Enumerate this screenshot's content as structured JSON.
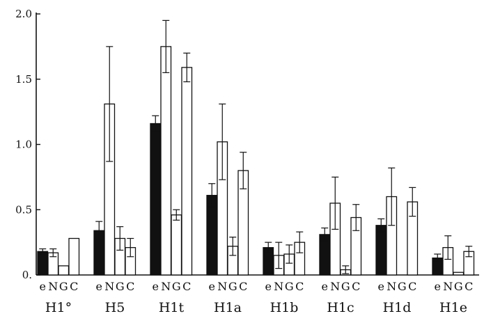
{
  "chart_data": {
    "type": "bar",
    "categories": [
      "H1°",
      "H5",
      "H1t",
      "H1a",
      "H1b",
      "H1c",
      "H1d",
      "H1e"
    ],
    "sub_labels": [
      "e",
      "N",
      "G",
      "C"
    ],
    "yticks": [
      "0.",
      "0.5",
      "1.0",
      "1.5",
      "2.0"
    ],
    "ylim": [
      0,
      2.0
    ],
    "grid": false,
    "series": [
      {
        "fill": "#111111",
        "values": [
          0.18,
          0.34,
          1.16,
          0.61,
          0.21,
          0.31,
          0.38,
          0.13
        ],
        "errors": [
          0.02,
          0.07,
          0.06,
          0.09,
          0.04,
          0.05,
          0.05,
          0.03
        ]
      },
      {
        "fill": "#ffffff",
        "values": [
          0.17,
          1.31,
          1.75,
          1.02,
          0.15,
          0.55,
          0.6,
          0.21
        ],
        "errors": [
          0.03,
          0.44,
          0.2,
          0.29,
          0.1,
          0.2,
          0.22,
          0.09
        ]
      },
      {
        "fill": "#ffffff",
        "values": [
          0.07,
          0.28,
          0.46,
          0.22,
          0.16,
          0.04,
          null,
          0.02
        ],
        "errors": [
          null,
          0.09,
          0.04,
          0.07,
          0.07,
          0.03,
          null,
          null
        ]
      },
      {
        "fill": "#ffffff",
        "values": [
          0.28,
          0.21,
          1.59,
          0.8,
          0.25,
          0.44,
          0.56,
          0.18
        ],
        "errors": [
          null,
          0.07,
          0.11,
          0.14,
          0.08,
          0.1,
          0.11,
          0.04
        ]
      }
    ]
  }
}
